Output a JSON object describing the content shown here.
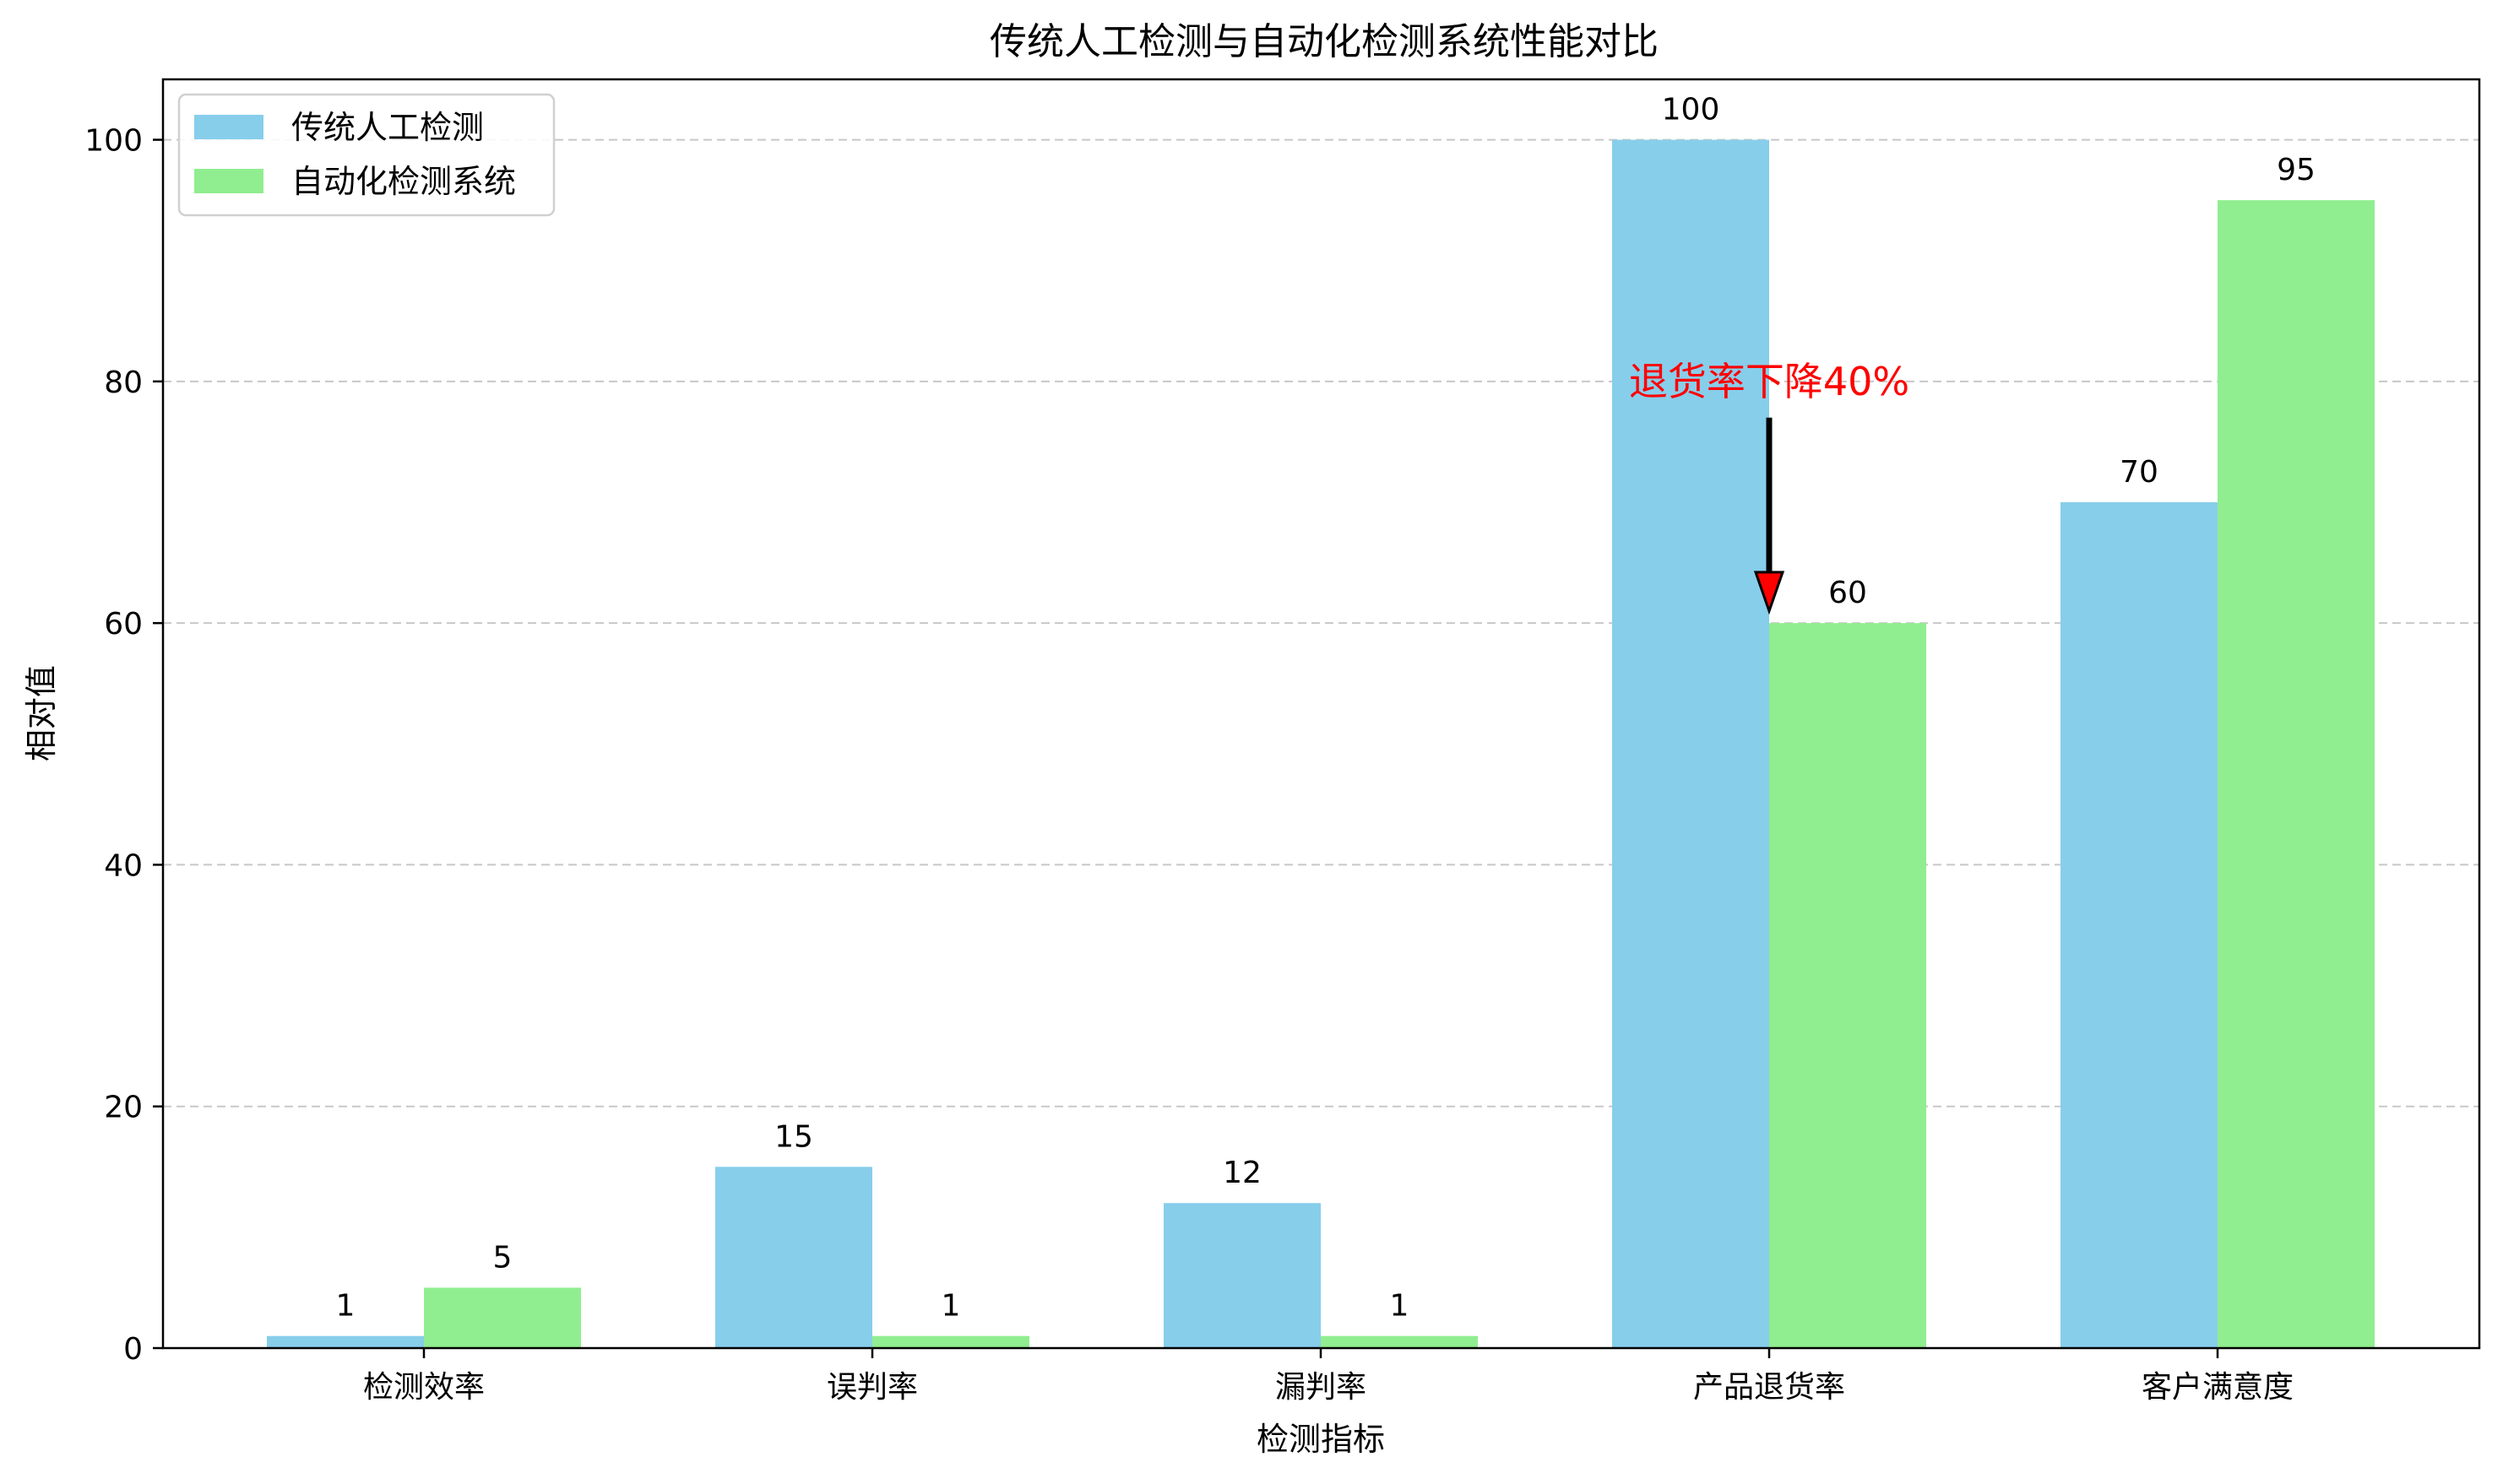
{
  "chart_data": {
    "type": "bar",
    "title": "传统人工检测与自动化检测系统性能对比",
    "xlabel": "检测指标",
    "ylabel": "相对值",
    "categories": [
      "检测效率",
      "误判率",
      "漏判率",
      "产品退货率",
      "客户满意度"
    ],
    "series": [
      {
        "name": "传统人工检测",
        "values": [
          1,
          15,
          12,
          100,
          70
        ],
        "color": "#87ceeb"
      },
      {
        "name": "自动化检测系统",
        "values": [
          5,
          1,
          1,
          60,
          95
        ],
        "color": "#90ee90"
      }
    ],
    "ylim": [
      0,
      105
    ],
    "yticks": [
      0,
      20,
      40,
      60,
      80,
      100
    ],
    "grid": "y-dashed",
    "legend_position": "top-left",
    "annotations": [
      {
        "text": "退货率下降40%",
        "color": "#ff0000",
        "category_index": 3,
        "text_y": 80,
        "arrow_from_y": 77,
        "arrow_to_y": 61,
        "arrow_color": "#000000",
        "arrow_head_color": "#ff0000"
      }
    ]
  }
}
